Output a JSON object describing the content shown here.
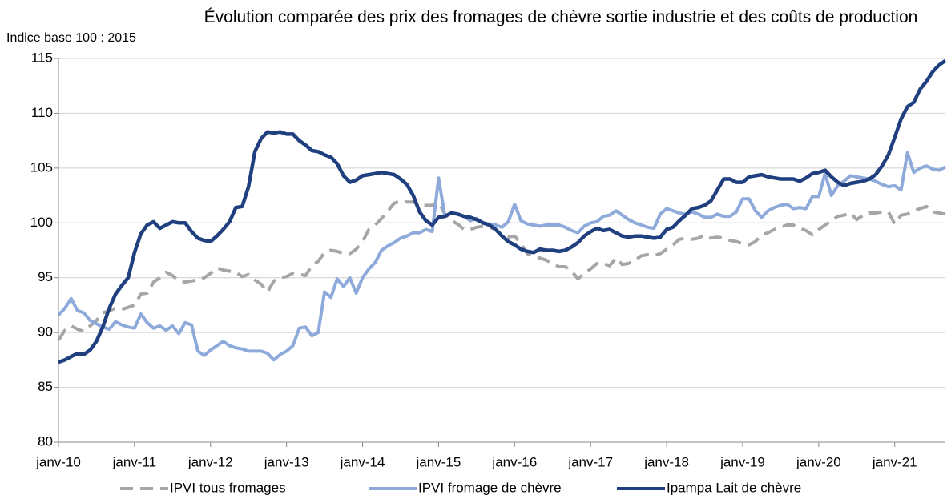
{
  "chart_data": {
    "type": "line",
    "title": "Évolution comparée des prix des fromages de chèvre sortie industrie et des coûts de production",
    "y_label": "Indice base 100 : 2015",
    "categories": [
      "janv-10",
      null,
      null,
      null,
      null,
      null,
      null,
      null,
      null,
      null,
      null,
      null,
      "janv-11",
      null,
      null,
      null,
      null,
      null,
      null,
      null,
      null,
      null,
      null,
      null,
      "janv-12",
      null,
      null,
      null,
      null,
      null,
      null,
      null,
      null,
      null,
      null,
      null,
      "janv-13",
      null,
      null,
      null,
      null,
      null,
      null,
      null,
      null,
      null,
      null,
      null,
      "janv-14",
      null,
      null,
      null,
      null,
      null,
      null,
      null,
      null,
      null,
      null,
      null,
      "janv-15",
      null,
      null,
      null,
      null,
      null,
      null,
      null,
      null,
      null,
      null,
      null,
      "janv-16",
      null,
      null,
      null,
      null,
      null,
      null,
      null,
      null,
      null,
      null,
      null,
      "janv-17",
      null,
      null,
      null,
      null,
      null,
      null,
      null,
      null,
      null,
      null,
      null,
      "janv-18",
      null,
      null,
      null,
      null,
      null,
      null,
      null,
      null,
      null,
      null,
      null,
      "janv-19",
      null,
      null,
      null,
      null,
      null,
      null,
      null,
      null,
      null,
      null,
      null,
      "janv-20",
      null,
      null,
      null,
      null,
      null,
      null,
      null,
      null,
      null,
      null,
      null,
      "janv-21",
      null,
      null,
      null,
      null,
      null,
      null,
      null,
      null
    ],
    "series": [
      {
        "name": "IPVI tous fromages",
        "color": "#a6a6a6",
        "dashed": true,
        "values": [
          89.3,
          90.2,
          90.6,
          90.3,
          90.1,
          90.6,
          91.1,
          91.8,
          92.0,
          92.2,
          92.1,
          92.3,
          92.5,
          93.5,
          93.6,
          94.6,
          95.0,
          95.5,
          95.2,
          94.7,
          94.6,
          94.7,
          94.8,
          95.0,
          95.4,
          95.9,
          95.7,
          95.6,
          95.5,
          95.1,
          95.3,
          94.8,
          94.4,
          93.7,
          94.7,
          95.0,
          95.1,
          95.4,
          95.3,
          95.2,
          96.1,
          96.5,
          97.3,
          97.5,
          97.4,
          97.2,
          97.2,
          97.6,
          98.3,
          99.4,
          99.8,
          100.4,
          101.1,
          101.8,
          102.0,
          101.9,
          101.9,
          101.6,
          101.6,
          101.6,
          101.9,
          100.8,
          100.2,
          99.9,
          99.4,
          99.4,
          99.6,
          99.7,
          99.6,
          99.4,
          98.9,
          98.7,
          98.8,
          98.1,
          97.2,
          96.9,
          96.8,
          96.6,
          96.3,
          96.0,
          96.0,
          95.6,
          94.9,
          95.4,
          95.8,
          96.3,
          96.3,
          96.1,
          96.8,
          96.2,
          96.3,
          96.6,
          97.0,
          97.1,
          97.0,
          97.2,
          97.6,
          98.0,
          98.5,
          98.6,
          98.5,
          98.6,
          98.9,
          98.6,
          98.7,
          98.6,
          98.4,
          98.3,
          98.1,
          98.0,
          98.3,
          98.9,
          99.1,
          99.4,
          99.6,
          99.8,
          99.8,
          99.5,
          99.3,
          98.9,
          99.4,
          99.8,
          100.2,
          100.6,
          100.7,
          100.9,
          100.3,
          100.7,
          100.9,
          100.9,
          101.0,
          101.0,
          99.9,
          100.7,
          100.8,
          101.1,
          101.3,
          101.5,
          101.0,
          100.9,
          100.8
        ]
      },
      {
        "name": "IPVI fromage de chèvre",
        "color": "#8eaadb",
        "dashed": false,
        "values": [
          91.6,
          92.2,
          93.1,
          92.0,
          91.8,
          91.1,
          90.8,
          90.5,
          90.3,
          91.0,
          90.7,
          90.5,
          90.4,
          91.7,
          90.9,
          90.4,
          90.6,
          90.2,
          90.6,
          89.9,
          90.9,
          90.7,
          88.3,
          87.9,
          88.4,
          88.8,
          89.2,
          88.8,
          88.6,
          88.5,
          88.3,
          88.3,
          88.3,
          88.1,
          87.5,
          88.0,
          88.3,
          88.8,
          90.4,
          90.5,
          89.7,
          90.0,
          93.7,
          93.2,
          94.9,
          94.2,
          95.0,
          93.6,
          95.0,
          95.8,
          96.4,
          97.5,
          97.9,
          98.2,
          98.6,
          98.8,
          99.1,
          99.1,
          99.4,
          99.2,
          104.1,
          100.6,
          100.9,
          100.8,
          100.6,
          100.2,
          100.4,
          100.0,
          99.9,
          99.8,
          99.6,
          100.1,
          101.7,
          100.2,
          99.9,
          99.8,
          99.7,
          99.8,
          99.8,
          99.8,
          99.6,
          99.3,
          99.1,
          99.7,
          100.0,
          100.1,
          100.6,
          100.7,
          101.1,
          100.7,
          100.3,
          100.0,
          99.8,
          99.6,
          99.5,
          100.8,
          101.3,
          101.1,
          100.9,
          100.8,
          101.0,
          100.8,
          100.5,
          100.5,
          100.8,
          100.6,
          100.6,
          101.0,
          102.2,
          102.2,
          101.1,
          100.5,
          101.1,
          101.4,
          101.6,
          101.7,
          101.3,
          101.4,
          101.3,
          102.4,
          102.4,
          104.5,
          102.5,
          103.4,
          103.8,
          104.3,
          104.2,
          104.1,
          104.0,
          103.8,
          103.5,
          103.3,
          103.4,
          103.0,
          106.4,
          104.6,
          105.0,
          105.2,
          104.9,
          104.8,
          105.1
        ]
      },
      {
        "name": "Ipampa Lait de chèvre",
        "color": "#1f3f7f",
        "dashed": false,
        "values": [
          87.3,
          87.5,
          87.8,
          88.1,
          88.0,
          88.4,
          89.2,
          90.5,
          92.2,
          93.5,
          94.3,
          95.0,
          97.3,
          99.0,
          99.8,
          100.1,
          99.5,
          99.8,
          100.1,
          100.0,
          100.0,
          99.2,
          98.6,
          98.4,
          98.3,
          98.8,
          99.4,
          100.1,
          101.4,
          101.5,
          103.3,
          106.5,
          107.7,
          108.3,
          108.2,
          108.3,
          108.1,
          108.1,
          107.5,
          107.1,
          106.6,
          106.5,
          106.2,
          106.0,
          105.4,
          104.3,
          103.7,
          103.9,
          104.3,
          104.4,
          104.5,
          104.6,
          104.5,
          104.4,
          104.0,
          103.5,
          102.5,
          101.0,
          100.2,
          99.8,
          100.5,
          100.6,
          100.9,
          100.8,
          100.6,
          100.5,
          100.3,
          100.0,
          99.8,
          99.4,
          98.8,
          98.3,
          98.0,
          97.6,
          97.4,
          97.3,
          97.6,
          97.5,
          97.5,
          97.4,
          97.5,
          97.8,
          98.2,
          98.8,
          99.2,
          99.5,
          99.3,
          99.4,
          99.1,
          98.8,
          98.7,
          98.8,
          98.8,
          98.7,
          98.6,
          98.7,
          99.4,
          99.6,
          100.2,
          100.7,
          101.3,
          101.4,
          101.6,
          102.0,
          103.0,
          104.0,
          104.0,
          103.7,
          103.7,
          104.2,
          104.3,
          104.4,
          104.2,
          104.1,
          104.0,
          104.0,
          104.0,
          103.8,
          104.1,
          104.5,
          104.6,
          104.8,
          104.2,
          103.7,
          103.4,
          103.6,
          103.7,
          103.8,
          104.0,
          104.4,
          105.2,
          106.2,
          107.8,
          109.5,
          110.6,
          111.0,
          112.2,
          112.9,
          113.8,
          114.4,
          114.8
        ]
      }
    ],
    "ylim": [
      80,
      115
    ],
    "yticks": [
      80,
      85,
      90,
      95,
      100,
      105,
      110,
      115
    ],
    "grid": true,
    "legend": "bottom"
  }
}
